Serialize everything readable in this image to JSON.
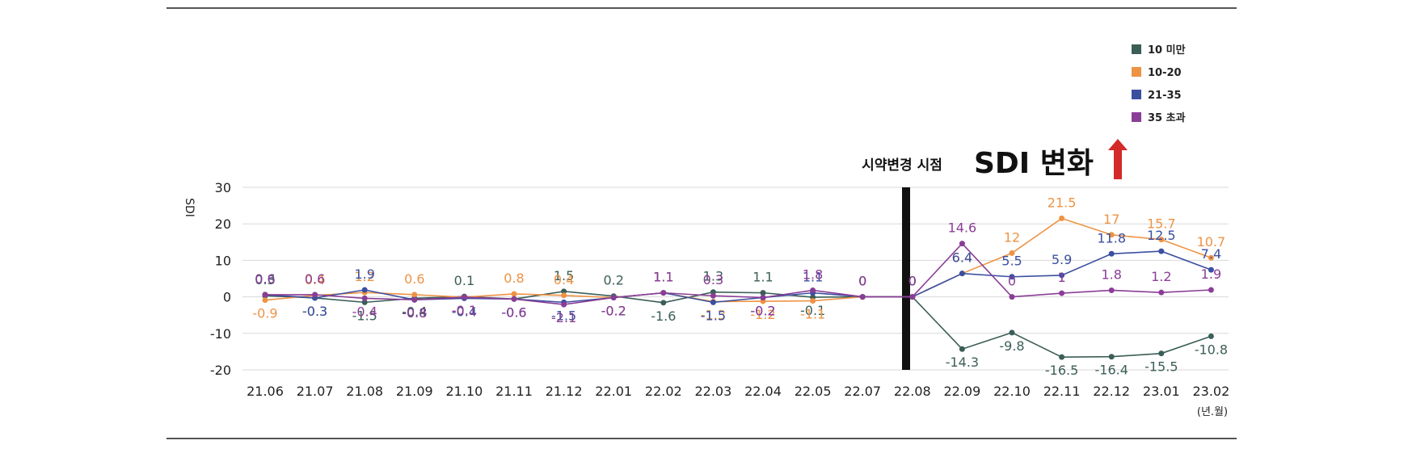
{
  "chart_data": {
    "type": "line",
    "ylabel": "SDI",
    "ylim": [
      -20,
      30
    ],
    "yticks": [
      30,
      20,
      10,
      0,
      -10,
      -20
    ],
    "grid": true,
    "legend_position": "top-right",
    "x_unit_label": "(년.월)",
    "categories": [
      "21.06",
      "21.07",
      "21.08",
      "21.09",
      "21.10",
      "21.11",
      "21.12",
      "22.01",
      "22.02",
      "22.03",
      "22.04",
      "22.05",
      "22.07",
      "22.08",
      "22.09",
      "22.10",
      "22.11",
      "22.12",
      "23.01",
      "23.02"
    ],
    "series": [
      {
        "name": "10 미만",
        "color": "#3b5e57",
        "values": [
          0.3,
          -0.3,
          -1.5,
          -0.4,
          0.1,
          -0.6,
          1.5,
          0.2,
          -1.6,
          1.3,
          1.1,
          -0.1,
          0,
          0,
          -14.3,
          -9.8,
          -16.5,
          -16.4,
          -15.5,
          -10.8
        ]
      },
      {
        "name": "10-20",
        "color": "#ee9344",
        "values": [
          -0.9,
          0.4,
          1.2,
          0.6,
          -0.1,
          0.8,
          0.4,
          -0.2,
          1.1,
          -1.3,
          -1.2,
          -1.1,
          0,
          0,
          6.4,
          12,
          21.5,
          17,
          15.7,
          10.7
        ]
      },
      {
        "name": "21-35",
        "color": "#3b4fa0",
        "values": [
          0.6,
          -0.3,
          1.9,
          -0.8,
          -0.4,
          -0.6,
          -1.5,
          -0.2,
          1.1,
          -1.5,
          -0.2,
          1.1,
          0,
          0,
          6.4,
          5.5,
          5.9,
          11.8,
          12.5,
          7.4
        ]
      },
      {
        "name": "35 초과",
        "color": "#8a3d96",
        "values": [
          0.6,
          0.6,
          -0.4,
          -0.8,
          -0.1,
          -0.6,
          -2.1,
          -0.2,
          1.1,
          0.3,
          -0.2,
          1.8,
          0,
          0,
          14.6,
          0,
          1,
          1.8,
          1.2,
          1.9
        ]
      }
    ],
    "annotations": {
      "change_point_label": "시약변경 시점",
      "change_point_category": "22.08",
      "headline": "SDI 변화"
    }
  }
}
